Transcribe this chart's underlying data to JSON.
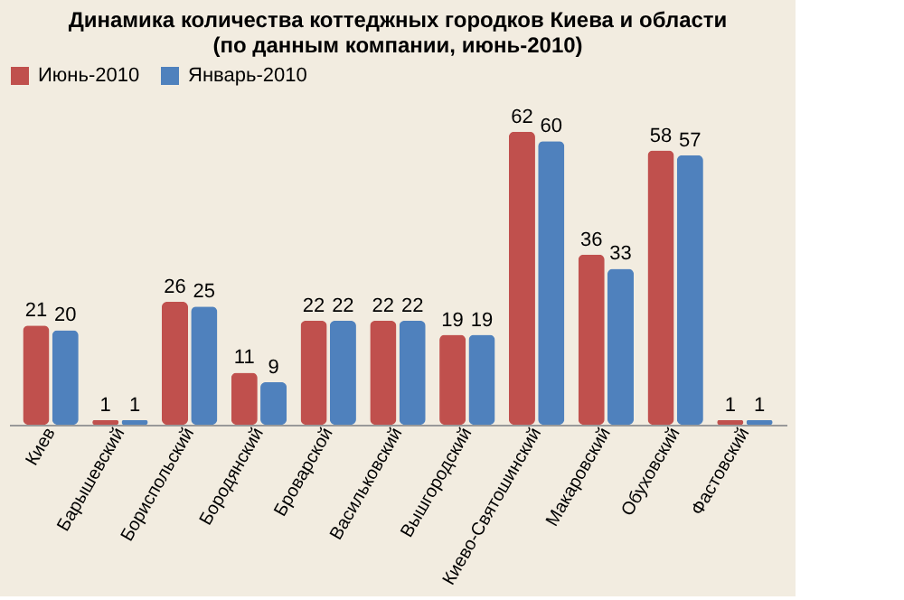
{
  "chart_data": {
    "type": "bar",
    "title": [
      "Динамика количества коттеджных городков Киева и области",
      "(по данным компании, июнь-2010)"
    ],
    "categories": [
      "Киев",
      "Барышевский",
      "Бориспольский",
      "Бородянский",
      "Броварской",
      "Васильковский",
      "Вышгородский",
      "Киево-Святошинский",
      "Макаровский",
      "Обуховский",
      "Фастовский"
    ],
    "series": [
      {
        "name": "Июнь-2010",
        "color": "#c0504d",
        "values": [
          21,
          1,
          26,
          11,
          22,
          22,
          19,
          62,
          36,
          58,
          1
        ]
      },
      {
        "name": "Январь-2010",
        "color": "#4f81bd",
        "values": [
          20,
          1,
          25,
          9,
          22,
          22,
          19,
          60,
          33,
          57,
          1
        ]
      }
    ],
    "data_labels": true,
    "legend": "top",
    "grid": false
  }
}
